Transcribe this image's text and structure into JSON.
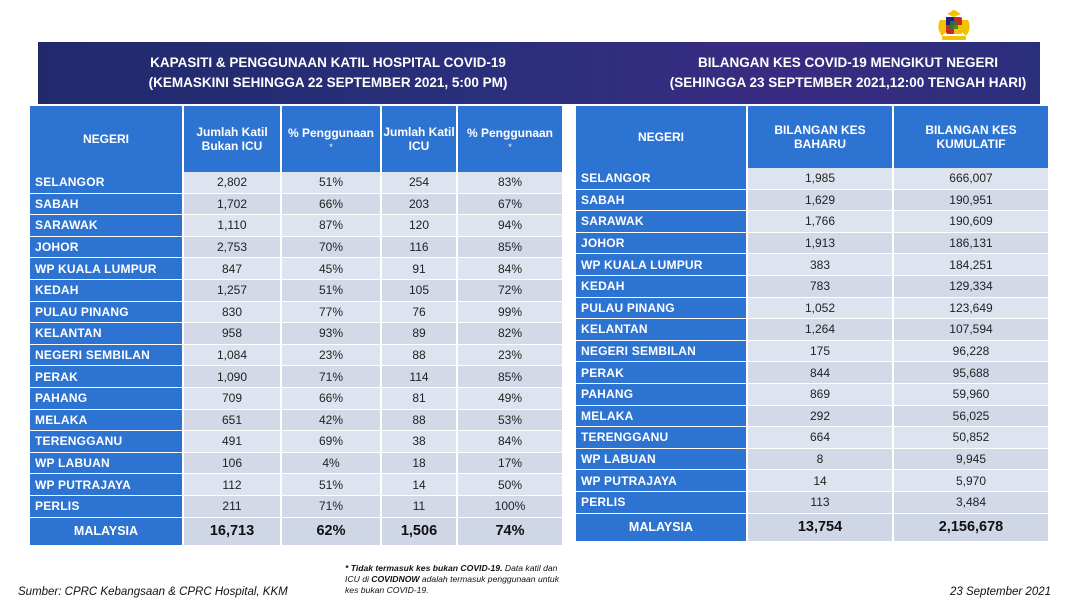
{
  "left": {
    "title_line1": "KAPASITI & PENGGUNAAN KATIL HOSPITAL COVID-19",
    "title_line2": "(KEMASKINI SEHINGGA 22 SEPTEMBER 2021, 5:00 PM)",
    "headers": [
      "NEGERI",
      "Jumlah Katil Bukan ICU",
      "% Penggunaan",
      "Jumlah Katil ICU",
      "% Penggunaan"
    ],
    "header_marks": [
      "",
      "",
      "*",
      "",
      "*"
    ],
    "rows": [
      [
        "SELANGOR",
        "2,802",
        "51%",
        "254",
        "83%"
      ],
      [
        "SABAH",
        "1,702",
        "66%",
        "203",
        "67%"
      ],
      [
        "SARAWAK",
        "1,110",
        "87%",
        "120",
        "94%"
      ],
      [
        "JOHOR",
        "2,753",
        "70%",
        "116",
        "85%"
      ],
      [
        "WP KUALA LUMPUR",
        "847",
        "45%",
        "91",
        "84%"
      ],
      [
        "KEDAH",
        "1,257",
        "51%",
        "105",
        "72%"
      ],
      [
        "PULAU PINANG",
        "830",
        "77%",
        "76",
        "99%"
      ],
      [
        "KELANTAN",
        "958",
        "93%",
        "89",
        "82%"
      ],
      [
        "NEGERI SEMBILAN",
        "1,084",
        "23%",
        "88",
        "23%"
      ],
      [
        "PERAK",
        "1,090",
        "71%",
        "114",
        "85%"
      ],
      [
        "PAHANG",
        "709",
        "66%",
        "81",
        "49%"
      ],
      [
        "MELAKA",
        "651",
        "42%",
        "88",
        "53%"
      ],
      [
        "TERENGGANU",
        "491",
        "69%",
        "38",
        "84%"
      ],
      [
        "WP LABUAN",
        "106",
        "4%",
        "18",
        "17%"
      ],
      [
        "WP PUTRAJAYA",
        "112",
        "51%",
        "14",
        "50%"
      ],
      [
        "PERLIS",
        "211",
        "71%",
        "11",
        "100%"
      ]
    ],
    "total": [
      "MALAYSIA",
      "16,713",
      "62%",
      "1,506",
      "74%"
    ]
  },
  "right": {
    "title_line1": "BILANGAN KES COVID-19 MENGIKUT NEGERI",
    "title_line2": "(SEHINGGA 23 SEPTEMBER 2021,12:00 TENGAH HARI)",
    "headers": [
      "NEGERI",
      "BILANGAN KES BAHARU",
      "BILANGAN KES KUMULATIF"
    ],
    "rows": [
      [
        "SELANGOR",
        "1,985",
        "666,007"
      ],
      [
        "SABAH",
        "1,629",
        "190,951"
      ],
      [
        "SARAWAK",
        "1,766",
        "190,609"
      ],
      [
        "JOHOR",
        "1,913",
        "186,131"
      ],
      [
        "WP KUALA LUMPUR",
        "383",
        "184,251"
      ],
      [
        "KEDAH",
        "783",
        "129,334"
      ],
      [
        "PULAU PINANG",
        "1,052",
        "123,649"
      ],
      [
        "KELANTAN",
        "1,264",
        "107,594"
      ],
      [
        "NEGERI SEMBILAN",
        "175",
        "96,228"
      ],
      [
        "PERAK",
        "844",
        "95,688"
      ],
      [
        "PAHANG",
        "869",
        "59,960"
      ],
      [
        "MELAKA",
        "292",
        "56,025"
      ],
      [
        "TERENGGANU",
        "664",
        "50,852"
      ],
      [
        "WP LABUAN",
        "8",
        "9,945"
      ],
      [
        "WP PUTRAJAYA",
        "14",
        "5,970"
      ],
      [
        "PERLIS",
        "113",
        "3,484"
      ]
    ],
    "total": [
      "MALAYSIA",
      "13,754",
      "2,156,678"
    ]
  },
  "footer": {
    "source": "Sumber: CPRC Kebangsaan & CPRC Hospital, KKM",
    "note_bold1": "* Tidak termasuk kes bukan COVID-19.",
    "note_text1": " Data katil dan ICU di ",
    "note_bold2": "COVIDNOW",
    "note_text2": " adalah termasuk penggunaan untuk kes bukan COVID-19.",
    "date": "23 September 2021"
  },
  "logo": {
    "icon": "malaysia-coat-of-arms-icon",
    "caption": "KEMENTERIAN KESIHATAN MALAYSIA"
  },
  "colors": {
    "banner": "#2a2f7c",
    "header_blue": "#2d73d1",
    "row_light": "#dde3ef",
    "row_dark": "#d3d9e7"
  }
}
